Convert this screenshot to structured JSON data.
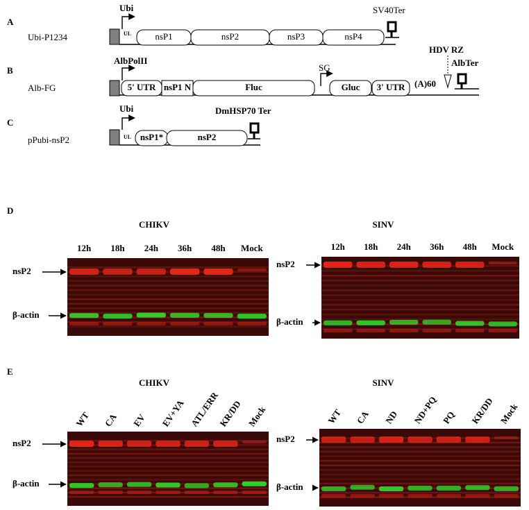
{
  "panel_a": {
    "letter": "A",
    "construct": "Ubi-P1234",
    "promoter": "Ubi",
    "ul": "UL",
    "segments": [
      "nsP1",
      "nsP2",
      "nsP3",
      "nsP4"
    ],
    "terminator": "SV40Ter"
  },
  "panel_b": {
    "letter": "B",
    "construct": "Alb-FG",
    "promoter": "AlbPolII",
    "segments": [
      "5' UTR",
      "nsP1 N",
      "Fluc",
      "Gluc",
      "3' UTR"
    ],
    "sg": "SG",
    "polya": "(A)60",
    "ribozyme": "HDV RZ",
    "terminator": "AlbTer"
  },
  "panel_c": {
    "letter": "C",
    "construct": "pPubi-nsP2",
    "promoter": "Ubi",
    "ul": "UL",
    "segments": [
      "nsP1*",
      "nsP2"
    ],
    "terminator": "DmHSP70 Ter"
  },
  "panel_d": {
    "letter": "D",
    "blots": [
      {
        "title": "CHIKV",
        "lanes": [
          "12h",
          "18h",
          "24h",
          "36h",
          "48h",
          "Mock"
        ],
        "bands": [
          "nsP2",
          "β-actin"
        ]
      },
      {
        "title": "SINV",
        "lanes": [
          "12h",
          "18h",
          "24h",
          "36h",
          "48h",
          "Mock"
        ],
        "bands": [
          "nsP2",
          "β-actin"
        ]
      }
    ]
  },
  "panel_e": {
    "letter": "E",
    "blots": [
      {
        "title": "CHIKV",
        "lanes": [
          "WT",
          "CA",
          "EV",
          "EV+YA",
          "ATL/ERR",
          "KR/DD",
          "Mock"
        ],
        "bands": [
          "nsP2",
          "β-actin"
        ]
      },
      {
        "title": "SINV",
        "lanes": [
          "WT",
          "CA",
          "ND",
          "ND+PQ",
          "PQ",
          "KR/DD",
          "Mock"
        ],
        "bands": [
          "nsP2",
          "β-actin"
        ]
      }
    ]
  }
}
